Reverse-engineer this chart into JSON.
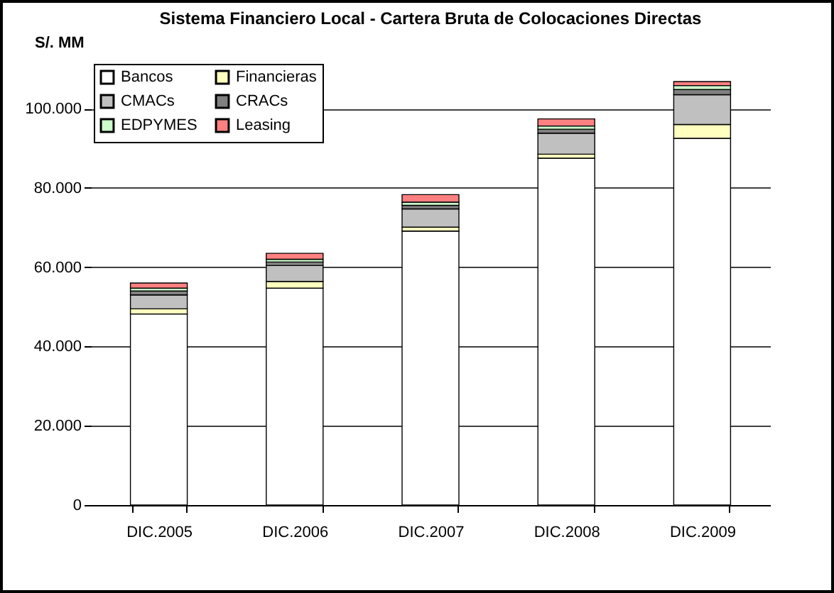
{
  "chart_data": {
    "type": "bar",
    "title": "Sistema Financiero Local - Cartera Bruta de Colocaciones Directas",
    "ylabel": "S/. MM",
    "categories": [
      "DIC.2005",
      "DIC.2006",
      "DIC.2007",
      "DIC.2008",
      "DIC.2009"
    ],
    "stacked": true,
    "series": [
      {
        "name": "Bancos",
        "color": "#ffffff",
        "values": [
          48200,
          54700,
          69100,
          87500,
          92500
        ]
      },
      {
        "name": "Financieras",
        "color": "#ffffc0",
        "values": [
          1300,
          1700,
          1000,
          1000,
          3500
        ]
      },
      {
        "name": "CMACs",
        "color": "#c0c0c0",
        "values": [
          3500,
          4000,
          4600,
          5300,
          7500
        ]
      },
      {
        "name": "CRACs",
        "color": "#808080",
        "values": [
          1000,
          900,
          900,
          1000,
          1300
        ]
      },
      {
        "name": "EDPYMES",
        "color": "#ccffcc",
        "values": [
          700,
          700,
          800,
          800,
          1000
        ]
      },
      {
        "name": "Leasing",
        "color": "#ff8080",
        "values": [
          1300,
          1500,
          1900,
          1800,
          1000
        ]
      }
    ],
    "ylim": [
      0,
      112000
    ],
    "yticks": [
      {
        "value": 0,
        "label": "0"
      },
      {
        "value": 20000,
        "label": "20.000"
      },
      {
        "value": 40000,
        "label": "40.000"
      },
      {
        "value": 60000,
        "label": "60.000"
      },
      {
        "value": 80000,
        "label": "80.000"
      },
      {
        "value": 100000,
        "label": "100.000"
      }
    ],
    "grid": "y",
    "legend": "top left"
  }
}
